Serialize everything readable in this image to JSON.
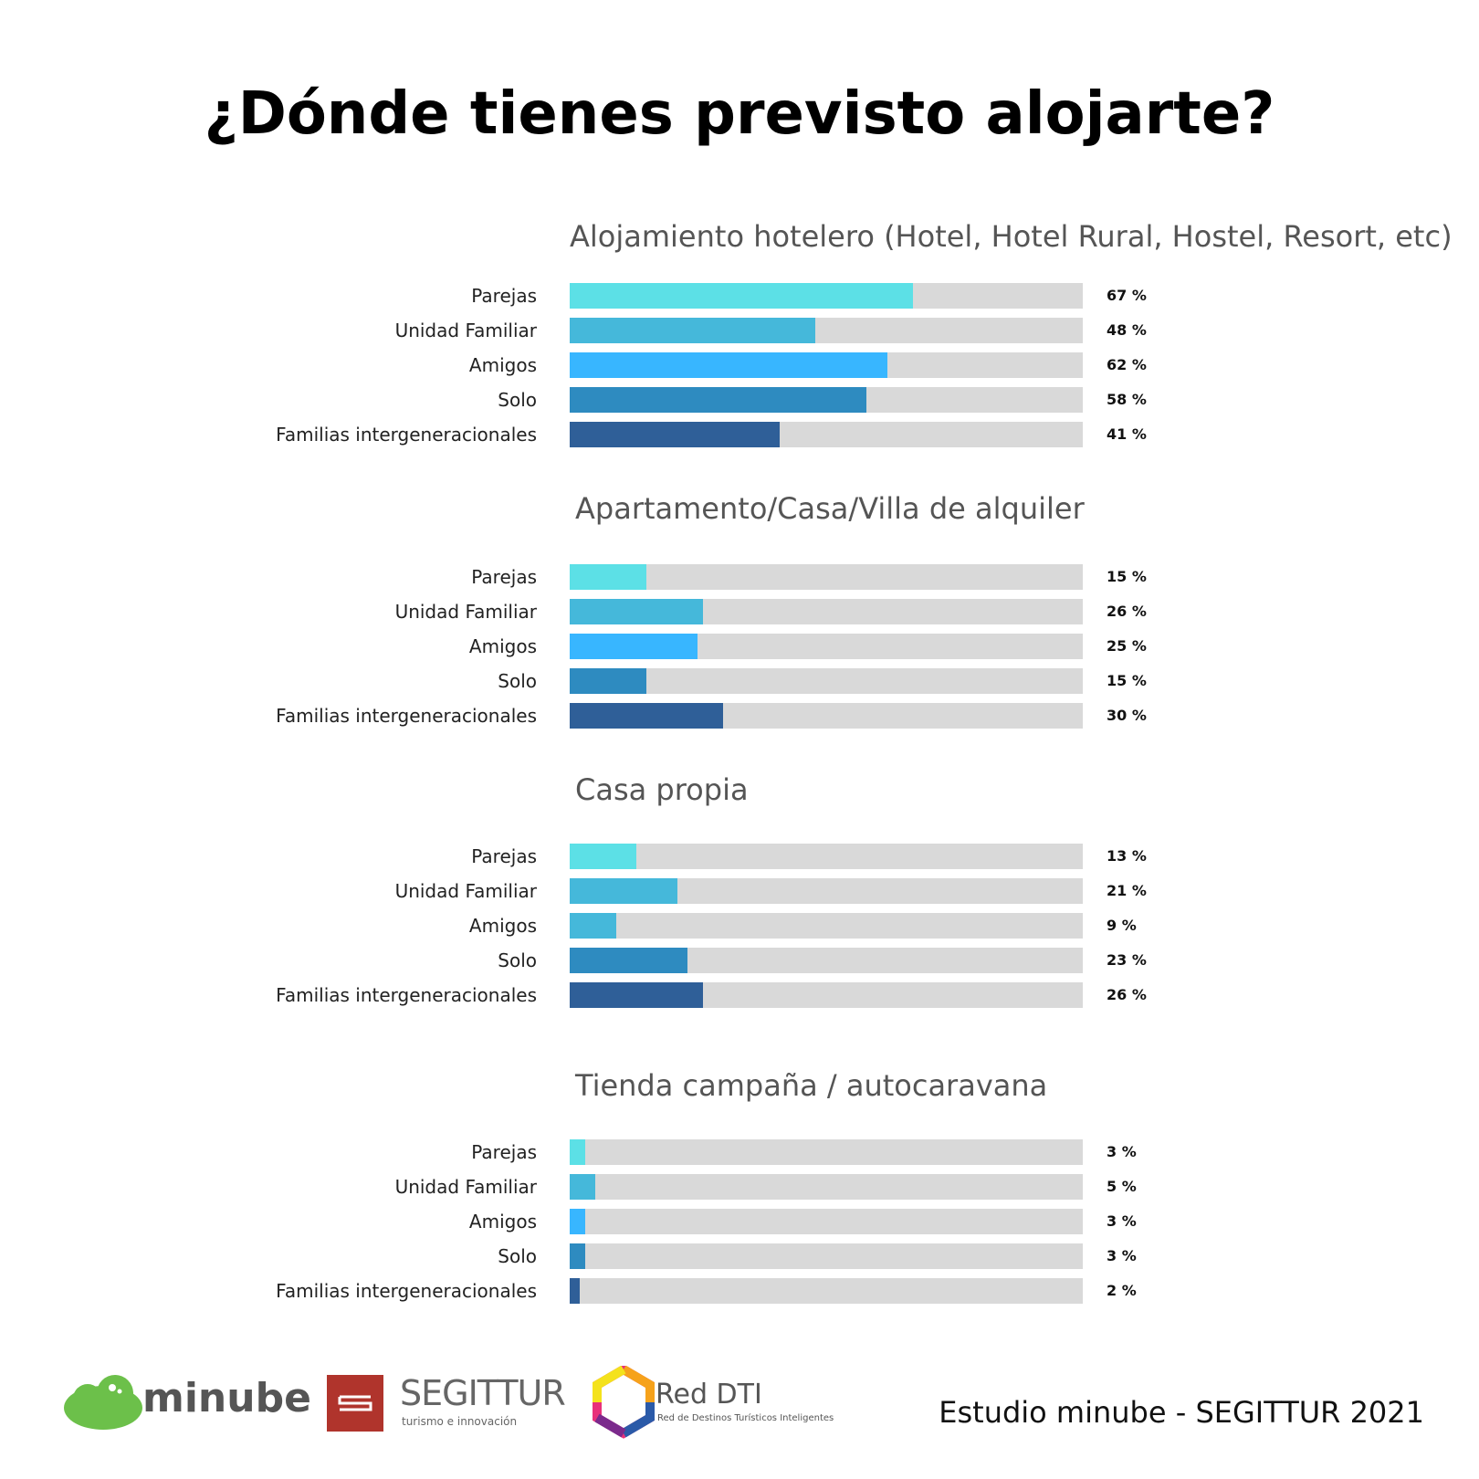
{
  "title": "¿Dónde tienes previsto alojarte?",
  "colors": {
    "track": "#d9d9d9",
    "Parejas": "#5ce0e6",
    "Unidad Familiar": "#45b8da",
    "Amigos": "#38b6ff",
    "Solo": "#2e8bc0",
    "Familias intergeneracionales": "#2f5f98"
  },
  "chart_data": [
    {
      "type": "bar",
      "orientation": "horizontal",
      "title": "Alojamiento hotelero (Hotel, Hotel Rural, Hostel, Resort, etc)",
      "categories": [
        "Parejas",
        "Unidad Familiar",
        "Amigos",
        "Solo",
        "Familias intergeneracionales"
      ],
      "values": [
        67,
        48,
        62,
        58,
        41
      ],
      "value_labels": [
        "67 %",
        "48 %",
        "62 %",
        "58 %",
        "41 %"
      ],
      "bar_colors": [
        "#5ce0e6",
        "#45b8da",
        "#38b6ff",
        "#2e8bc0",
        "#2f5f98"
      ],
      "xlim": [
        0,
        100
      ]
    },
    {
      "type": "bar",
      "orientation": "horizontal",
      "title": "Apartamento/Casa/Villa de alquiler",
      "categories": [
        "Parejas",
        "Unidad Familiar",
        "Amigos",
        "Solo",
        "Familias intergeneracionales"
      ],
      "values": [
        15,
        26,
        25,
        15,
        30
      ],
      "value_labels": [
        "15 %",
        "26 %",
        "25 %",
        "15 %",
        "30 %"
      ],
      "bar_colors": [
        "#5ce0e6",
        "#45b8da",
        "#38b6ff",
        "#2e8bc0",
        "#2f5f98"
      ],
      "xlim": [
        0,
        100
      ]
    },
    {
      "type": "bar",
      "orientation": "horizontal",
      "title": "Casa propia",
      "categories": [
        "Parejas",
        "Unidad Familiar",
        "Amigos",
        "Solo",
        "Familias intergeneracionales"
      ],
      "values": [
        13,
        21,
        9,
        23,
        26
      ],
      "value_labels": [
        "13 %",
        "21 %",
        "9 %",
        "23 %",
        "26 %"
      ],
      "bar_colors": [
        "#5ce0e6",
        "#45b8da",
        "#45b8da",
        "#2e8bc0",
        "#2f5f98"
      ],
      "xlim": [
        0,
        100
      ]
    },
    {
      "type": "bar",
      "orientation": "horizontal",
      "title": "Tienda campaña / autocaravana",
      "categories": [
        "Parejas",
        "Unidad Familiar",
        "Amigos",
        "Solo",
        "Familias intergeneracionales"
      ],
      "values": [
        3,
        5,
        3,
        3,
        2
      ],
      "value_labels": [
        "3 %",
        "5 %",
        "3 %",
        "3 %",
        "2 %"
      ],
      "bar_colors": [
        "#5ce0e6",
        "#45b8da",
        "#38b6ff",
        "#2e8bc0",
        "#2f5f98"
      ],
      "xlim": [
        0,
        100
      ]
    }
  ],
  "footer": {
    "logos": [
      {
        "name": "minube",
        "text": "minube",
        "icon": "cloud-icon",
        "color": "#6cc04a"
      },
      {
        "name": "SEGITTUR",
        "text": "SEGITTUR",
        "subtext": "turismo e innovación",
        "icon": "segittur-square-icon",
        "color": "#b0342c"
      },
      {
        "name": "Red DTI",
        "text": "Red DTI",
        "subtext": "Red de Destinos Turísticos Inteligentes",
        "icon": "hexagon-icon"
      }
    ],
    "credit": "Estudio minube - SEGITTUR 2021"
  }
}
